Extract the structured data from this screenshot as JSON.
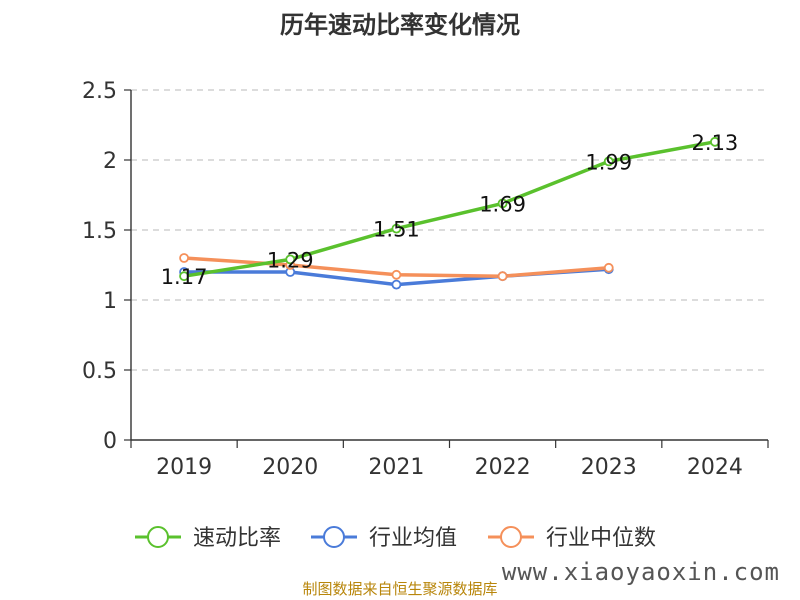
{
  "chart_data": {
    "type": "line",
    "title": "历年速动比率变化情况",
    "categories": [
      "2019",
      "2020",
      "2021",
      "2022",
      "2023",
      "2024"
    ],
    "ylim": [
      0,
      2.5
    ],
    "yticks": [
      "0",
      "0.5",
      "1",
      "1.5",
      "2",
      "2.5"
    ],
    "grid": true,
    "legend_position": "bottom",
    "series": [
      {
        "name": "速动比率",
        "color": "#5ac12d",
        "values": [
          1.17,
          1.29,
          1.51,
          1.69,
          1.99,
          2.13
        ],
        "labels": [
          "1.17",
          "1.29",
          "1.51",
          "1.69",
          "1.99",
          "2.13"
        ]
      },
      {
        "name": "行业均值",
        "color": "#4a7bd9",
        "values": [
          1.2,
          1.2,
          1.11,
          1.17,
          1.22,
          null
        ]
      },
      {
        "name": "行业中位数",
        "color": "#f5905a",
        "values": [
          1.3,
          1.25,
          1.18,
          1.17,
          1.23,
          null
        ]
      }
    ]
  },
  "source_text": "制图数据来自恒生聚源数据库",
  "watermark": "www.xiaoyaoxin.com"
}
